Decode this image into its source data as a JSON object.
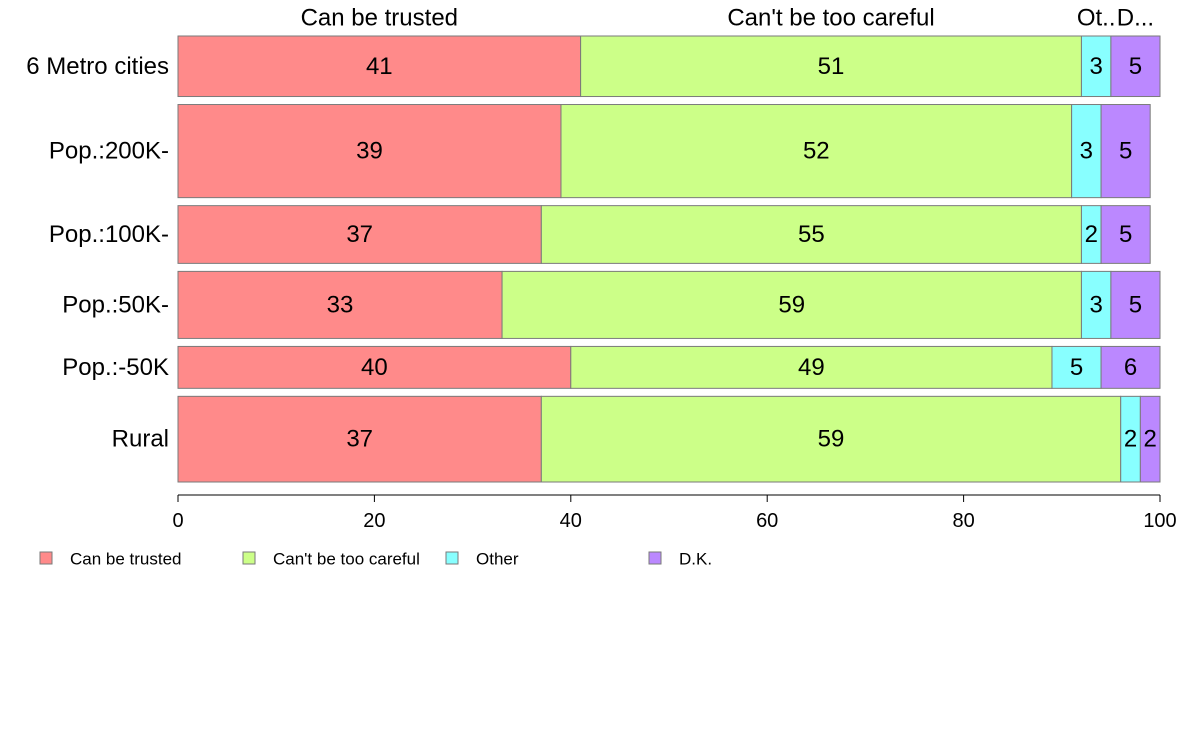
{
  "chart_data": {
    "type": "bar",
    "orientation": "horizontal",
    "stacked": true,
    "variable_width": true,
    "categories": [
      "6 Metro cities",
      "Pop.:200K-",
      "Pop.:100K-",
      "Pop.:50K-",
      "Pop.:-50K",
      "Rural"
    ],
    "category_weights": [
      0.65,
      1.0,
      0.62,
      0.72,
      0.45,
      0.92
    ],
    "series": [
      {
        "name": "Can be trusted",
        "values": [
          41,
          39,
          37,
          33,
          40,
          37
        ],
        "color": "#ff8a8a",
        "header": "Can be trusted"
      },
      {
        "name": "Can't be too careful",
        "values": [
          51,
          52,
          55,
          59,
          49,
          59
        ],
        "color": "#ccff88",
        "header": "Can't be too careful"
      },
      {
        "name": "Other",
        "values": [
          3,
          3,
          2,
          3,
          5,
          2
        ],
        "color": "#88ffff",
        "header": "Ot.."
      },
      {
        "name": "D.K.",
        "values": [
          5,
          5,
          5,
          5,
          6,
          2
        ],
        "color": "#bb88ff",
        "header": "D..."
      }
    ],
    "xlim": [
      0,
      100
    ],
    "xticks": [
      0,
      20,
      40,
      60,
      80,
      100
    ],
    "xlabel": "",
    "ylabel": "",
    "title": "",
    "grid": false,
    "legend_position": "bottom-left"
  }
}
